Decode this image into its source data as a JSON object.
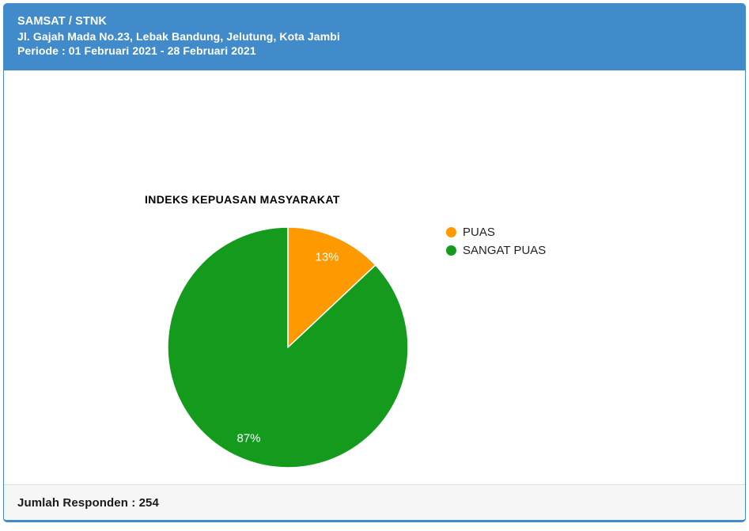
{
  "panel": {
    "title": "SAMSAT / STNK",
    "address": "Jl. Gajah Mada No.23, Lebak Bandung, Jelutung, Kota Jambi",
    "periode": "Periode : 01 Februari 2021 - 28 Februari 2021"
  },
  "footer": {
    "responden": "Jumlah Responden : 254"
  },
  "colors": {
    "header_bg": "#428bca",
    "panel_border": "#428bca",
    "footer_bg": "#f6f6f6",
    "footer_border": "#dddddd",
    "legend_text": "#222222"
  },
  "chart_data": {
    "type": "pie",
    "title": "INDEKS KEPUASAN MASYARAKAT",
    "categories": [
      "PUAS",
      "SANGAT PUAS"
    ],
    "values": [
      13,
      87
    ],
    "slice_labels": [
      "13%",
      "87%"
    ],
    "slice_colors": [
      "#ff9900",
      "#149b1e"
    ],
    "legend_position": "right",
    "start_angle_deg": 0,
    "direction": "clockwise",
    "label_radius_ratio": 0.82
  }
}
